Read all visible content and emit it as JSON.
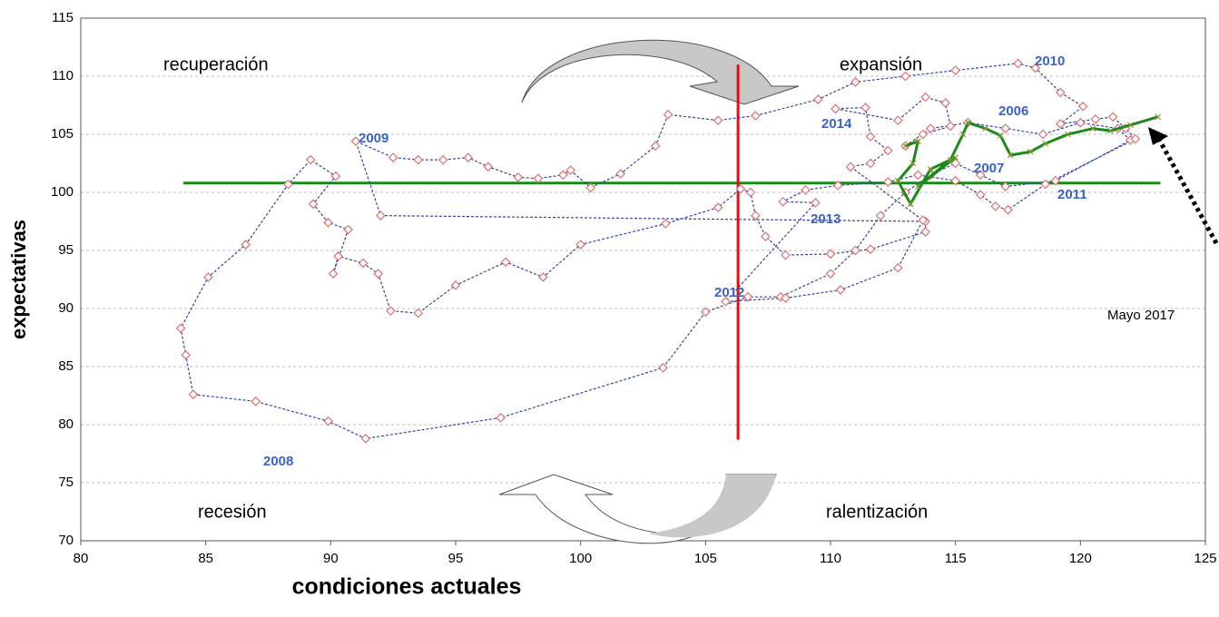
{
  "chart_data": {
    "type": "scatter",
    "xlabel": "condiciones actuales",
    "ylabel": "expectativas",
    "xlim": [
      80,
      125
    ],
    "ylim": [
      70,
      115
    ],
    "xticks": [
      80,
      85,
      90,
      95,
      100,
      105,
      110,
      115,
      120,
      125
    ],
    "yticks": [
      70,
      75,
      80,
      85,
      90,
      95,
      100,
      105,
      110,
      115
    ],
    "grid": true,
    "series": [
      {
        "color": "#3344aa",
        "marker_color": "#e07070",
        "x": [
          113,
          114,
          115.5,
          117,
          118.5,
          120,
          121.5,
          122,
          119,
          117,
          116,
          115,
          114,
          113,
          112,
          111,
          110,
          108,
          106.7,
          105,
          103.3,
          96.8,
          91.4,
          89.9,
          87,
          84.5,
          84.2,
          84,
          85.1,
          86.6,
          88.3,
          89.2,
          90.2,
          89.3,
          89.9,
          90.7,
          90.1,
          90.3,
          91.3,
          91.9,
          92.4,
          93.5,
          95,
          97,
          98.5,
          100,
          103.4,
          105.5,
          106.4,
          106.8,
          107,
          107.4,
          108.2,
          110,
          111.6,
          113.8,
          113.8,
          92,
          91,
          92.5,
          93.5,
          94.5,
          95.5,
          96.3,
          97.5,
          98.3,
          99.3,
          99.6,
          100.4,
          101.6,
          103,
          103.5,
          105.5,
          107,
          109.5,
          111,
          113,
          115,
          117.5,
          118.2,
          119.2,
          120.1,
          119.2,
          120.6,
          121.3,
          121.8,
          122.2,
          118.6,
          117.1,
          116.6,
          116,
          115,
          113.5,
          112.3,
          110.3,
          109,
          108.1,
          109.4,
          105.8,
          108.2,
          110.4,
          112.7,
          113.7,
          110.8,
          111.6,
          112.3,
          111.6,
          111.4,
          110.2,
          112.7,
          113.8,
          114.6,
          114.8,
          113.7
        ],
        "y": [
          104,
          105.5,
          106,
          105.5,
          105,
          106,
          105.5,
          104.5,
          101,
          100.5,
          101.5,
          102.5,
          101.5,
          100,
          98,
          95,
          93,
          91,
          91,
          89.7,
          84.9,
          80.6,
          78.8,
          80.3,
          82,
          82.6,
          86,
          88.3,
          92.7,
          95.5,
          100.7,
          102.8,
          101.4,
          99,
          97.4,
          96.8,
          93,
          94.5,
          93.9,
          93,
          89.8,
          89.6,
          92,
          94,
          92.7,
          95.5,
          97.3,
          98.7,
          100.3,
          100,
          98,
          96.2,
          94.6,
          94.7,
          95.1,
          96.6,
          97.5,
          98,
          104.4,
          103,
          102.8,
          102.8,
          103,
          102.2,
          101.3,
          101.2,
          101.5,
          101.9,
          100.4,
          101.6,
          104,
          106.7,
          106.2,
          106.6,
          108,
          109.5,
          110,
          110.5,
          111.1,
          110.7,
          108.6,
          107.4,
          105.9,
          106.3,
          106.5,
          105.5,
          104.6,
          100.7,
          98.5,
          98.8,
          99.8,
          101,
          101.5,
          100.9,
          100.6,
          100.2,
          99.2,
          99.1,
          90.6,
          90.9,
          91.6,
          93.5,
          97.6,
          102.2,
          102.5,
          103.6,
          104.8,
          107.3,
          107.2,
          106.2,
          108.2,
          107.7,
          105.7,
          105
        ]
      },
      {
        "color": "#1a8a1a",
        "marker_color": "#8a9a30",
        "x": [
          113,
          113.5,
          113.3,
          112.7,
          113.2,
          114,
          115,
          113.5,
          114.8,
          115.3,
          115.5,
          116.2,
          116.8,
          117.2,
          118,
          118.6,
          119.5,
          120.5,
          121.2,
          122,
          123.1
        ],
        "y": [
          104,
          104.4,
          102.5,
          101,
          99,
          102,
          103,
          100.5,
          102.8,
          105,
          106,
          105.5,
          104.9,
          103.2,
          103.5,
          104.2,
          105,
          105.5,
          105.3,
          105.8,
          106.5
        ]
      }
    ],
    "hline": {
      "y": 100.8,
      "x": [
        84.1,
        123.2
      ],
      "color": "#1a8a1a"
    },
    "vline": {
      "x": 106.3,
      "y": [
        78.7,
        111
      ],
      "color": "#dd1111"
    },
    "annotations": [
      "recuperación",
      "expansión",
      "recesión",
      "ralentización",
      "2010",
      "2006",
      "2014",
      "2009",
      "2007",
      "2011",
      "2013",
      "2012",
      "2008",
      "Mayo 2017"
    ]
  }
}
